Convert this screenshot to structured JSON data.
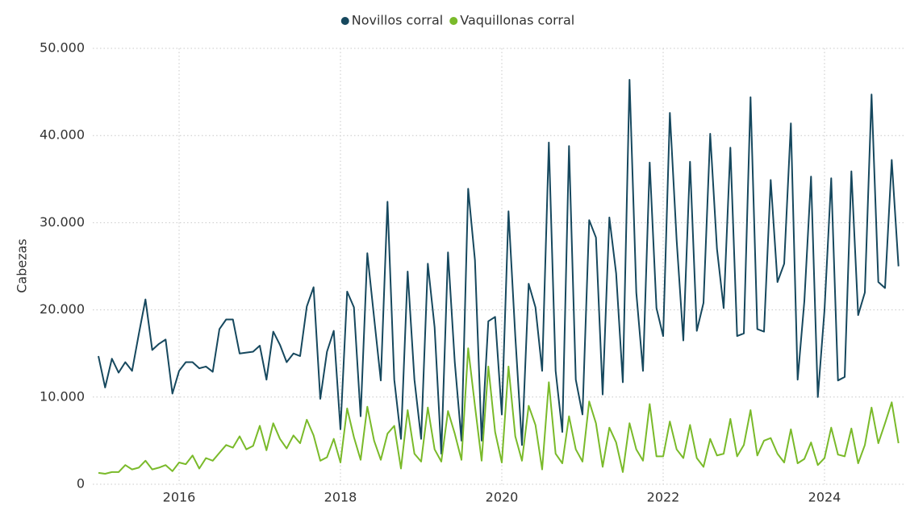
{
  "chart_data": {
    "type": "line",
    "y_label": "Cabezas",
    "x": [
      2015,
      2015.083,
      2015.167,
      2015.25,
      2015.333,
      2015.417,
      2015.5,
      2015.583,
      2015.667,
      2015.75,
      2015.833,
      2015.917,
      2016,
      2016.083,
      2016.167,
      2016.25,
      2016.333,
      2016.417,
      2016.5,
      2016.583,
      2016.667,
      2016.75,
      2016.833,
      2016.917,
      2017,
      2017.083,
      2017.167,
      2017.25,
      2017.333,
      2017.417,
      2017.5,
      2017.583,
      2017.667,
      2017.75,
      2017.833,
      2017.917,
      2018,
      2018.083,
      2018.167,
      2018.25,
      2018.333,
      2018.417,
      2018.5,
      2018.583,
      2018.667,
      2018.75,
      2018.833,
      2018.917,
      2019,
      2019.083,
      2019.167,
      2019.25,
      2019.333,
      2019.417,
      2019.5,
      2019.583,
      2019.667,
      2019.75,
      2019.833,
      2019.917,
      2020,
      2020.083,
      2020.167,
      2020.25,
      2020.333,
      2020.417,
      2020.5,
      2020.583,
      2020.667,
      2020.75,
      2020.833,
      2020.917,
      2021,
      2021.083,
      2021.167,
      2021.25,
      2021.333,
      2021.417,
      2021.5,
      2021.583,
      2021.667,
      2021.75,
      2021.833,
      2021.917,
      2022,
      2022.083,
      2022.167,
      2022.25,
      2022.333,
      2022.417,
      2022.5,
      2022.583,
      2022.667,
      2022.75,
      2022.833,
      2022.917,
      2023,
      2023.083,
      2023.167,
      2023.25,
      2023.333,
      2023.417,
      2023.5,
      2023.583,
      2023.667,
      2023.75,
      2023.833,
      2023.917,
      2024,
      2024.083,
      2024.167,
      2024.25,
      2024.333,
      2024.417,
      2024.5,
      2024.583,
      2024.667,
      2024.75,
      2024.833,
      2024.917
    ],
    "series": [
      {
        "name": "Novillos corral",
        "color": "#16485e",
        "values": [
          14700,
          11100,
          14400,
          12800,
          14000,
          13000,
          17200,
          21200,
          15400,
          16100,
          16600,
          10400,
          13000,
          14000,
          14000,
          13300,
          13500,
          12900,
          17800,
          18900,
          18900,
          15000,
          15100,
          15200,
          15900,
          12000,
          17500,
          16000,
          14000,
          15000,
          14700,
          20400,
          22600,
          9800,
          15200,
          17600,
          6300,
          22100,
          20300,
          7800,
          26500,
          19100,
          11900,
          32400,
          12000,
          5200,
          24400,
          12000,
          5200,
          25300,
          18000,
          3500,
          26600,
          14000,
          5000,
          33900,
          25700,
          5000,
          18700,
          19200,
          8000,
          31300,
          17000,
          4500,
          23000,
          20300,
          13000,
          39200,
          13000,
          6000,
          38800,
          12000,
          8000,
          30300,
          28300,
          10300,
          30600,
          24200,
          11700,
          46400,
          22000,
          13000,
          36900,
          20200,
          17000,
          42600,
          28000,
          16500,
          37000,
          17600,
          20800,
          40200,
          27000,
          20200,
          38600,
          17000,
          17300,
          44400,
          17800,
          17500,
          34900,
          23200,
          25300,
          41400,
          12000,
          21000,
          35300,
          10000,
          20000,
          35100,
          11900,
          12300,
          35900,
          19400,
          22000,
          44700,
          23200,
          22500,
          37200,
          25000
        ]
      },
      {
        "name": "Vaquillonas corral",
        "color": "#7aba2a",
        "values": [
          1300,
          1200,
          1400,
          1400,
          2200,
          1700,
          1900,
          2700,
          1700,
          1900,
          2200,
          1500,
          2500,
          2300,
          3300,
          1800,
          3000,
          2700,
          3600,
          4500,
          4200,
          5500,
          4000,
          4400,
          6700,
          3900,
          7000,
          5200,
          4100,
          5600,
          4700,
          7400,
          5600,
          2700,
          3100,
          5200,
          2500,
          8700,
          5400,
          2800,
          8900,
          5000,
          2800,
          5800,
          6700,
          1800,
          8500,
          3500,
          2600,
          8800,
          4000,
          2600,
          8400,
          5800,
          2800,
          15600,
          9000,
          2700,
          13500,
          6000,
          2500,
          13500,
          5500,
          2700,
          9000,
          6800,
          1700,
          11700,
          3500,
          2400,
          7800,
          4000,
          2600,
          9500,
          7000,
          2000,
          6500,
          4800,
          1400,
          7000,
          4000,
          2700,
          9200,
          3200,
          3200,
          7200,
          4000,
          3000,
          6800,
          3000,
          2000,
          5200,
          3300,
          3500,
          7500,
          3200,
          4500,
          8500,
          3300,
          5000,
          5300,
          3500,
          2500,
          6300,
          2400,
          2900,
          4800,
          2200,
          3000,
          6500,
          3400,
          3200,
          6400,
          2400,
          4500,
          8800,
          4700,
          7000,
          9400,
          4700
        ]
      }
    ],
    "xlim": [
      2014.93,
      2025.01
    ],
    "xticks": [
      2016,
      2018,
      2020,
      2022,
      2024
    ],
    "ylim": [
      0,
      50000
    ],
    "yticks": [
      0,
      {
        "value": 10000,
        "label": "10.000"
      },
      {
        "value": 20000,
        "label": "20.000"
      },
      {
        "value": 30000,
        "label": "30.000"
      },
      {
        "value": 40000,
        "label": "40.000"
      },
      {
        "value": 50000,
        "label": "50.000"
      }
    ],
    "grid": true,
    "legend": "top"
  }
}
